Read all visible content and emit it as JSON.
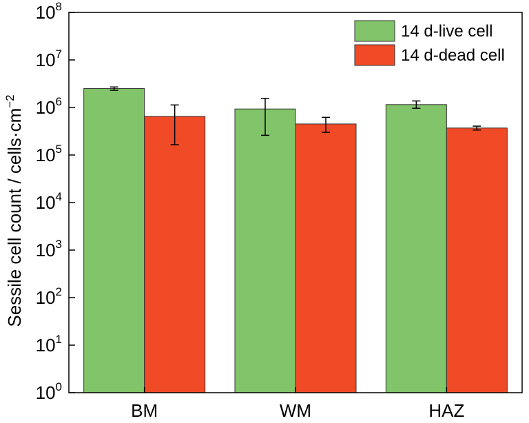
{
  "chart_data": {
    "type": "bar",
    "title": "",
    "xlabel": "",
    "ylabel": "Sessile cell count / cells·cm",
    "ylabel_sup": "−2",
    "yscale": "log",
    "ylim": [
      1,
      100000000
    ],
    "yticks": [
      {
        "base": "10",
        "exp": "0",
        "value": 1
      },
      {
        "base": "10",
        "exp": "1",
        "value": 10
      },
      {
        "base": "10",
        "exp": "2",
        "value": 100
      },
      {
        "base": "10",
        "exp": "3",
        "value": 1000
      },
      {
        "base": "10",
        "exp": "4",
        "value": 10000
      },
      {
        "base": "10",
        "exp": "5",
        "value": 100000
      },
      {
        "base": "10",
        "exp": "6",
        "value": 1000000
      },
      {
        "base": "10",
        "exp": "7",
        "value": 10000000
      },
      {
        "base": "10",
        "exp": "8",
        "value": 100000000
      }
    ],
    "categories": [
      "BM",
      "WM",
      "HAZ"
    ],
    "series": [
      {
        "name": "14 d-live cell",
        "color": "#82c469",
        "values": [
          2500000,
          930000,
          1150000
        ],
        "err_low": [
          2300000,
          260000,
          960000
        ],
        "err_high": [
          2700000,
          1550000,
          1370000
        ]
      },
      {
        "name": "14 d-dead cell",
        "color": "#f04a26",
        "values": [
          650000,
          450000,
          370000
        ],
        "err_low": [
          165000,
          300000,
          335000
        ],
        "err_high": [
          1130000,
          620000,
          405000
        ]
      }
    ],
    "legend_position": "top-right",
    "grid": false
  }
}
